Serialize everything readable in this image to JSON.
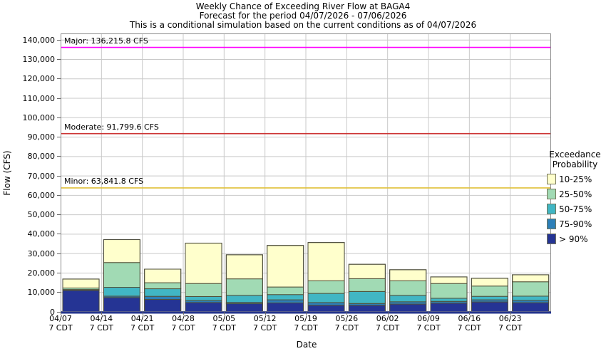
{
  "titles": {
    "line1": "Weekly Chance of Exceeding River Flow at BAGA4",
    "line2": "Forecast for the period 04/07/2026 - 07/06/2026",
    "line3": "This is a conditional simulation based on the current conditions as of 04/07/2026"
  },
  "axes": {
    "y_label": "Flow (CFS)",
    "x_label": "Date",
    "y_tick_labels": [
      "0",
      "10,000",
      "20,000",
      "30,000",
      "40,000",
      "50,000",
      "60,000",
      "70,000",
      "80,000",
      "90,000",
      "100,000",
      "110,000",
      "120,000",
      "130,000",
      "140,000"
    ],
    "y_tick_values": [
      0,
      10000,
      20000,
      30000,
      40000,
      50000,
      60000,
      70000,
      80000,
      90000,
      100000,
      110000,
      120000,
      130000,
      140000
    ]
  },
  "legend": {
    "title_line1": "Exceedance",
    "title_line2": "Probability",
    "items": [
      {
        "label": "10-25%",
        "color": "#FFFFCC"
      },
      {
        "label": "25-50%",
        "color": "#A1DAB4"
      },
      {
        "label": "50-75%",
        "color": "#41B6C4"
      },
      {
        "label": "75-90%",
        "color": "#2C7FB8"
      },
      {
        "label": "> 90%",
        "color": "#253494"
      }
    ]
  },
  "chart_data": {
    "type": "stacked_bar",
    "title": "Weekly Chance of Exceeding River Flow at BAGA4",
    "xlabel": "Date",
    "ylabel": "Flow (CFS)",
    "unit": "CFS",
    "ylim": [
      0,
      143000
    ],
    "grid": true,
    "legend_position": "right",
    "x_tick_sublabel": "7 CDT",
    "categories": [
      "04/07",
      "04/14",
      "04/21",
      "04/28",
      "05/05",
      "05/12",
      "05/19",
      "05/26",
      "06/02",
      "06/09",
      "06/16",
      "06/23"
    ],
    "series": [
      {
        "name": "> 90%",
        "color": "#253494",
        "values": [
          11300,
          7400,
          6400,
          4800,
          4200,
          4600,
          3400,
          3400,
          4000,
          4500,
          5100,
          4700
        ]
      },
      {
        "name": "75-90%",
        "color": "#2C7FB8",
        "values": [
          100,
          700,
          1600,
          1000,
          700,
          1600,
          1400,
          900,
          1200,
          900,
          1100,
          1200
        ]
      },
      {
        "name": "50-75%",
        "color": "#41B6C4",
        "values": [
          100,
          4550,
          3900,
          2100,
          3600,
          2700,
          4700,
          6200,
          3300,
          1600,
          1800,
          2200
        ]
      },
      {
        "name": "25-50%",
        "color": "#A1DAB4",
        "values": [
          800,
          12750,
          3100,
          6700,
          8500,
          3900,
          6500,
          6600,
          7500,
          7600,
          5300,
          7400
        ]
      },
      {
        "name": "10-25%",
        "color": "#FFFFCC",
        "values": [
          4600,
          11800,
          7000,
          20800,
          12400,
          21400,
          19700,
          7400,
          5700,
          3400,
          4000,
          3600
        ]
      }
    ],
    "bar_top_flow_10pct": [
      16900,
      37200,
      22000,
      35400,
      29400,
      34200,
      35700,
      24500,
      21700,
      18000,
      17300,
      19100
    ],
    "thresholds": [
      {
        "name": "Major",
        "label": "Major: 136,215.8 CFS",
        "value": 136215.8,
        "color": "#FF00FF"
      },
      {
        "name": "Moderate",
        "label": "Moderate: 91,799.6 CFS",
        "value": 91799.6,
        "color": "#CC3333"
      },
      {
        "name": "Minor",
        "label": "Minor: 63,841.8 CFS",
        "value": 63841.8,
        "color": "#E0C13A"
      }
    ]
  }
}
